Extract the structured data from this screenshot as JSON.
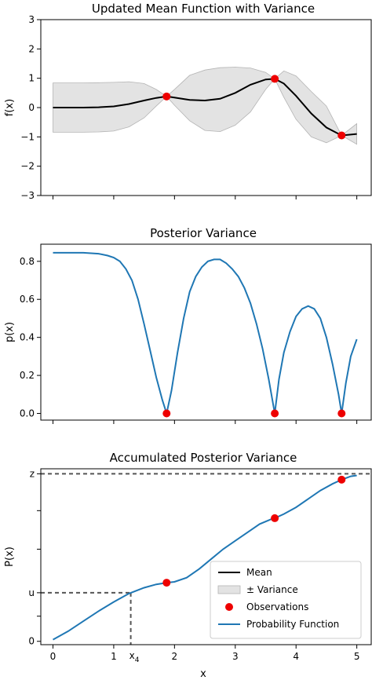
{
  "chart_data": [
    {
      "type": "line",
      "title": "Updated Mean Function with Variance",
      "xlabel": "",
      "ylabel": "f(x)",
      "xlim": [
        -0.2,
        5.25
      ],
      "ylim": [
        -3,
        3
      ],
      "yticks": [
        -3,
        -2,
        -1,
        0,
        1,
        2,
        3
      ],
      "ytick_labels": [
        "−3",
        "−2",
        "−1",
        "0",
        "1",
        "2",
        "3"
      ],
      "xticks": [
        0,
        1,
        2,
        3,
        4,
        5
      ],
      "grid": false,
      "mean": {
        "x": [
          0,
          0.25,
          0.5,
          0.75,
          1.0,
          1.25,
          1.5,
          1.7,
          1.87,
          2.0,
          2.25,
          2.5,
          2.75,
          3.0,
          3.25,
          3.5,
          3.65,
          3.8,
          4.0,
          4.25,
          4.5,
          4.75,
          5.0
        ],
        "y": [
          0.0,
          0.0,
          0.0,
          0.01,
          0.04,
          0.12,
          0.24,
          0.33,
          0.38,
          0.34,
          0.26,
          0.24,
          0.3,
          0.5,
          0.78,
          0.96,
          0.98,
          0.82,
          0.4,
          -0.2,
          -0.68,
          -0.95,
          -0.9
        ]
      },
      "band": {
        "x": [
          0,
          0.25,
          0.5,
          0.75,
          1.0,
          1.25,
          1.5,
          1.7,
          1.87,
          2.0,
          2.25,
          2.5,
          2.75,
          3.0,
          3.25,
          3.5,
          3.65,
          3.8,
          4.0,
          4.25,
          4.5,
          4.75,
          5.0
        ],
        "upper": [
          0.84,
          0.84,
          0.84,
          0.85,
          0.86,
          0.88,
          0.82,
          0.62,
          0.38,
          0.62,
          1.1,
          1.28,
          1.36,
          1.38,
          1.35,
          1.2,
          0.98,
          1.25,
          1.08,
          0.55,
          0.05,
          -0.95,
          -0.55
        ],
        "lower": [
          -0.84,
          -0.84,
          -0.84,
          -0.83,
          -0.8,
          -0.66,
          -0.35,
          0.05,
          0.38,
          0.08,
          -0.45,
          -0.78,
          -0.82,
          -0.6,
          -0.15,
          0.62,
          0.98,
          0.35,
          -0.4,
          -1.0,
          -1.2,
          -0.95,
          -1.25
        ]
      },
      "observations": {
        "x": [
          1.87,
          3.65,
          4.75
        ],
        "y": [
          0.38,
          0.98,
          -0.95
        ]
      }
    },
    {
      "type": "line",
      "title": "Posterior Variance",
      "xlabel": "",
      "ylabel": "p(x)",
      "xlim": [
        -0.2,
        5.25
      ],
      "ylim": [
        -0.035,
        0.89
      ],
      "yticks": [
        0.0,
        0.2,
        0.4,
        0.6,
        0.8
      ],
      "ytick_labels": [
        "0.0",
        "0.2",
        "0.4",
        "0.6",
        "0.8"
      ],
      "xticks": [
        0,
        1,
        2,
        3,
        4,
        5
      ],
      "grid": false,
      "series": [
        {
          "x": [
            0,
            0.25,
            0.5,
            0.75,
            0.9,
            1.0,
            1.1,
            1.2,
            1.3,
            1.4,
            1.5,
            1.6,
            1.7,
            1.8,
            1.87,
            1.95,
            2.05,
            2.15,
            2.25,
            2.35,
            2.45,
            2.55,
            2.65,
            2.75,
            2.85,
            2.95,
            3.05,
            3.15,
            3.25,
            3.35,
            3.45,
            3.55,
            3.65,
            3.72,
            3.8,
            3.9,
            4.0,
            4.1,
            4.2,
            4.3,
            4.4,
            4.5,
            4.6,
            4.7,
            4.75,
            4.82,
            4.9,
            5.0
          ],
          "y": [
            0.845,
            0.845,
            0.845,
            0.84,
            0.83,
            0.82,
            0.8,
            0.76,
            0.7,
            0.6,
            0.47,
            0.33,
            0.19,
            0.07,
            0.0,
            0.12,
            0.32,
            0.5,
            0.64,
            0.72,
            0.77,
            0.8,
            0.81,
            0.81,
            0.79,
            0.76,
            0.72,
            0.66,
            0.58,
            0.47,
            0.34,
            0.18,
            0.0,
            0.18,
            0.32,
            0.43,
            0.51,
            0.55,
            0.565,
            0.55,
            0.5,
            0.4,
            0.26,
            0.1,
            0.0,
            0.16,
            0.3,
            0.39
          ]
        }
      ],
      "observations": {
        "x": [
          1.87,
          3.65,
          4.75
        ],
        "y": [
          0.0,
          0.0,
          0.0
        ]
      }
    },
    {
      "type": "line",
      "title": "Accumulated Posterior Variance",
      "xlabel": "x",
      "ylabel": "P(x)",
      "xlim": [
        -0.2,
        5.25
      ],
      "ylim": [
        -0.02,
        1.03
      ],
      "yticks": [
        0.0,
        0.15,
        0.29,
        0.55,
        0.78,
        1.0
      ],
      "ytick_labels": [
        "0",
        "",
        "u",
        "",
        "",
        "z"
      ],
      "xticks": [
        0,
        1,
        2,
        3,
        4,
        5
      ],
      "x4": {
        "x": 1.28,
        "y": 0.29,
        "label": "x",
        "subscript": "4"
      },
      "z_level": 1.0,
      "grid": false,
      "series": [
        {
          "x": [
            0,
            0.25,
            0.5,
            0.75,
            1.0,
            1.25,
            1.5,
            1.7,
            1.87,
            2.0,
            2.2,
            2.4,
            2.6,
            2.8,
            3.0,
            3.2,
            3.4,
            3.6,
            3.65,
            3.8,
            4.0,
            4.2,
            4.4,
            4.6,
            4.75,
            4.9,
            5.0
          ],
          "y": [
            0.01,
            0.06,
            0.12,
            0.18,
            0.235,
            0.285,
            0.32,
            0.34,
            0.35,
            0.355,
            0.38,
            0.43,
            0.49,
            0.55,
            0.6,
            0.65,
            0.7,
            0.73,
            0.735,
            0.76,
            0.8,
            0.85,
            0.9,
            0.94,
            0.965,
            0.985,
            0.99
          ]
        }
      ],
      "observations": {
        "x": [
          1.87,
          3.65,
          4.75
        ],
        "y": [
          0.35,
          0.735,
          0.965
        ]
      }
    }
  ],
  "colors": {
    "mean": "#000000",
    "band": "#e3e3e3",
    "band_edge": "#b4b4b4",
    "line": "#1f77b4",
    "obs": "#ee0000",
    "guide": "#555555"
  },
  "legend": {
    "placement": "lower-right",
    "items": [
      {
        "label": "Mean",
        "kind": "line-black"
      },
      {
        "label": "± Variance",
        "kind": "patch"
      },
      {
        "label": "Observations",
        "kind": "dot"
      },
      {
        "label": "Probability Function",
        "kind": "line-blue"
      }
    ]
  }
}
